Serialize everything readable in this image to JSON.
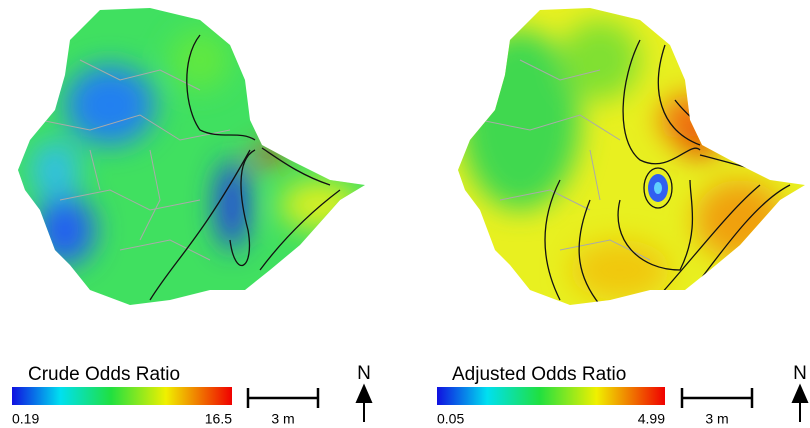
{
  "maps": [
    {
      "legend": {
        "title": "Crude Odds Ratio",
        "min": 0.19,
        "max": 16.5
      },
      "scale_bar": "3 m",
      "north": "N"
    },
    {
      "legend": {
        "title": "Adjusted Odds Ratio",
        "min": 0.05,
        "max": 4.99
      },
      "scale_bar": "3 m",
      "north": "N"
    }
  ]
}
